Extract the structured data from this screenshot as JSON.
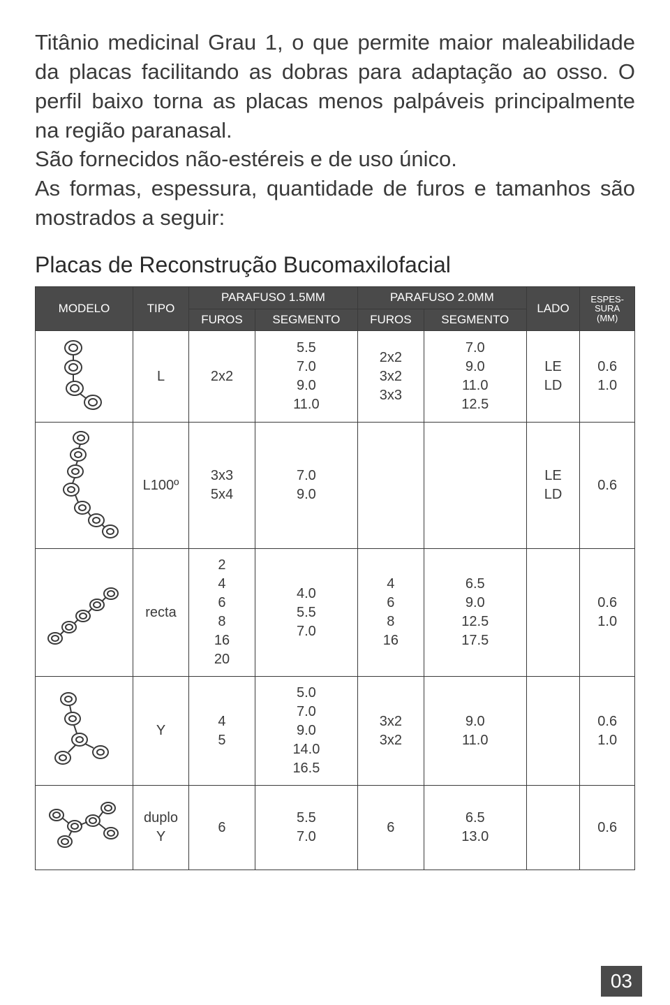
{
  "intro": {
    "p1": "Titânio medicinal Grau 1, o que permite maior maleabilidade da placas facilitando as dobras para adaptação ao osso. O perfil baixo torna as placas menos palpáveis principalmente na região paranasal.",
    "p2": "São fornecidos não-estéreis e de uso único.",
    "p3": "As formas, espessura, quantidade de furos e tamanhos são mostrados a seguir:"
  },
  "section_title": "Placas de Reconstrução Bucomaxilofacial",
  "table": {
    "headers": {
      "modelo": "MODELO",
      "tipo": "TIPO",
      "parafuso15": "PARAFUSO 1.5MM",
      "parafuso20": "PARAFUSO 2.0MM",
      "furos": "FUROS",
      "segmento": "SEGMENTO",
      "lado": "LADO",
      "espessura": "ESPES-\nSURA\n(MM)"
    },
    "rows": [
      {
        "tipo": "L",
        "furos15": "2x2",
        "seg15": "5.5\n7.0\n9.0\n11.0",
        "furos20": "2x2\n3x2\n3x3",
        "seg20": "7.0\n9.0\n11.0\n12.5",
        "lado": "LE\nLD",
        "esp": "0.6\n1.0"
      },
      {
        "tipo": "L100º",
        "furos15": "3x3\n5x4",
        "seg15": "7.0\n9.0",
        "furos20": "",
        "seg20": "",
        "lado": "LE\nLD",
        "esp": "0.6"
      },
      {
        "tipo": "recta",
        "furos15": "2\n4\n6\n8\n16\n20",
        "seg15": "4.0\n5.5\n7.0",
        "furos20": "4\n6\n8\n16",
        "seg20": "6.5\n9.0\n12.5\n17.5",
        "lado": "",
        "esp": "0.6\n1.0"
      },
      {
        "tipo": "Y",
        "furos15": "4\n5",
        "seg15": "5.0\n7.0\n9.0\n14.0\n16.5",
        "furos20": "3x2\n3x2",
        "seg20": "9.0\n11.0",
        "lado": "",
        "esp": "0.6\n1.0"
      },
      {
        "tipo": "duplo\nY",
        "furos15": "6",
        "seg15": "5.5\n7.0",
        "furos20": "6",
        "seg20": "6.5\n13.0",
        "lado": "",
        "esp": "0.6"
      }
    ]
  },
  "page_number": "03",
  "colors": {
    "header_bg": "#4a4a4a",
    "header_text": "#ffffff",
    "body_text": "#3a3a3a",
    "border": "#3a3a3a"
  }
}
